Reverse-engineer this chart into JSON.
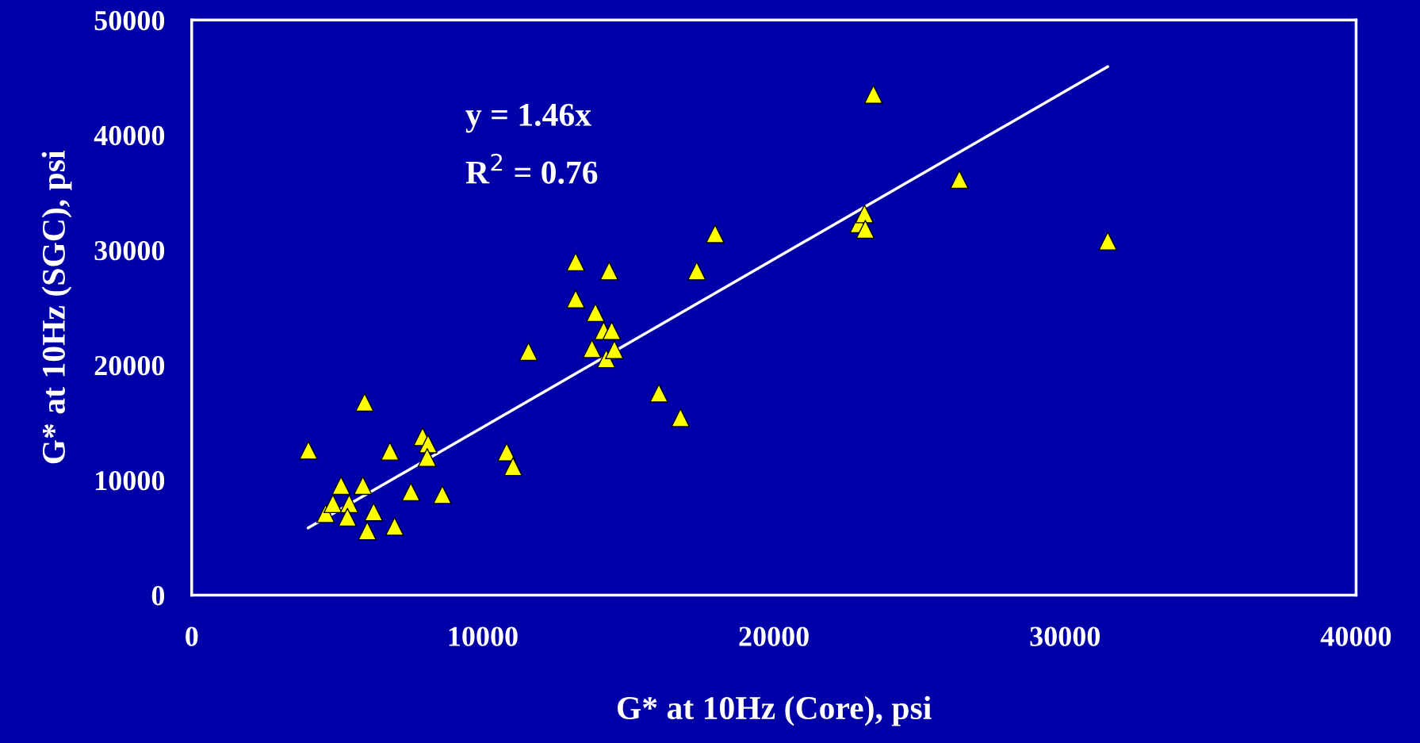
{
  "chart_data": {
    "type": "scatter",
    "xlabel": "G* at 10Hz (Core), psi",
    "ylabel": "G* at 10Hz (SGC), psi",
    "xlim": [
      0,
      40000
    ],
    "ylim": [
      0,
      50000
    ],
    "xticks": [
      0,
      10000,
      20000,
      30000,
      40000
    ],
    "yticks": [
      0,
      10000,
      20000,
      30000,
      40000,
      50000
    ],
    "grid": false,
    "legend": false,
    "marker": "triangle",
    "annotations": [
      {
        "text": "y = 1.46x"
      },
      {
        "text": "R$^{2}$ = 0.76"
      }
    ],
    "series": [
      {
        "color": "#ffff00",
        "x": [
          4010,
          5940,
          6810,
          5130,
          5880,
          4600,
          4850,
          5410,
          5350,
          6250,
          6030,
          6970,
          7530,
          8610,
          7930,
          8120,
          8090,
          10820,
          11040,
          11570,
          13190,
          13190,
          13870,
          13750,
          14150,
          14430,
          14240,
          14520,
          14340,
          16050,
          16790,
          17350,
          17980,
          22920,
          23110,
          23140,
          23420,
          26370,
          31470
        ],
        "values": [
          12600,
          16770,
          12520,
          9530,
          9530,
          7090,
          7950,
          7950,
          6770,
          7240,
          5590,
          5980,
          8980,
          8740,
          13780,
          13150,
          11970,
          12440,
          11180,
          21180,
          28980,
          25750,
          24570,
          21420,
          22990,
          22990,
          20550,
          21340,
          28190,
          17560,
          15430,
          28190,
          31420,
          32280,
          33150,
          31810,
          43540,
          36140,
          30790
        ]
      },
      {
        "type": "line",
        "color": "#ffffff",
        "marker": "none",
        "line_style": "solid",
        "x": [
          4000,
          31470
        ],
        "values": [
          5840,
          45950
        ]
      }
    ]
  }
}
